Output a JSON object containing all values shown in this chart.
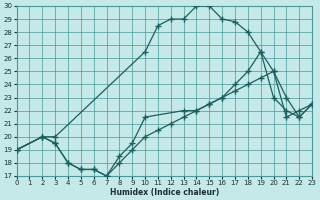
{
  "xlabel": "Humidex (Indice chaleur)",
  "background_color": "#c5e8e8",
  "grid_color": "#4a9898",
  "line_color": "#1a6060",
  "xlim": [
    0,
    23
  ],
  "ylim": [
    17,
    30
  ],
  "xticks": [
    0,
    1,
    2,
    3,
    4,
    5,
    6,
    7,
    8,
    9,
    10,
    11,
    12,
    13,
    14,
    15,
    16,
    17,
    18,
    19,
    20,
    21,
    22,
    23
  ],
  "yticks": [
    17,
    18,
    19,
    20,
    21,
    22,
    23,
    24,
    25,
    26,
    27,
    28,
    29,
    30
  ],
  "line_top_x": [
    0,
    2,
    3,
    10,
    11,
    12,
    13,
    14,
    15,
    16,
    17,
    18,
    19,
    20,
    21,
    22,
    23
  ],
  "line_top_y": [
    19,
    20,
    20,
    26.5,
    28.5,
    29,
    29,
    30,
    30,
    29,
    28.8,
    28,
    26.5,
    23,
    22,
    21.5,
    22.5
  ],
  "line_mid_x": [
    0,
    2,
    3,
    4,
    5,
    6,
    7,
    8,
    9,
    10,
    13,
    14,
    15,
    16,
    17,
    18,
    19,
    20,
    21,
    22,
    23
  ],
  "line_mid_y": [
    19,
    20,
    19.5,
    18,
    17.5,
    17.5,
    17,
    18.5,
    19.5,
    21.5,
    22,
    22,
    22.5,
    23,
    24,
    25,
    26.5,
    25,
    23,
    21.5,
    22.5
  ],
  "line_bot_x": [
    0,
    2,
    3,
    4,
    5,
    6,
    7,
    8,
    9,
    10,
    11,
    12,
    13,
    14,
    15,
    16,
    17,
    18,
    19,
    20,
    21,
    22,
    23
  ],
  "line_bot_y": [
    19,
    20,
    19.5,
    18,
    17.5,
    17.5,
    17,
    18,
    19,
    20,
    20.5,
    21,
    21.5,
    22,
    22.5,
    23,
    23.5,
    24,
    24.5,
    25,
    21.5,
    22,
    22.5
  ]
}
